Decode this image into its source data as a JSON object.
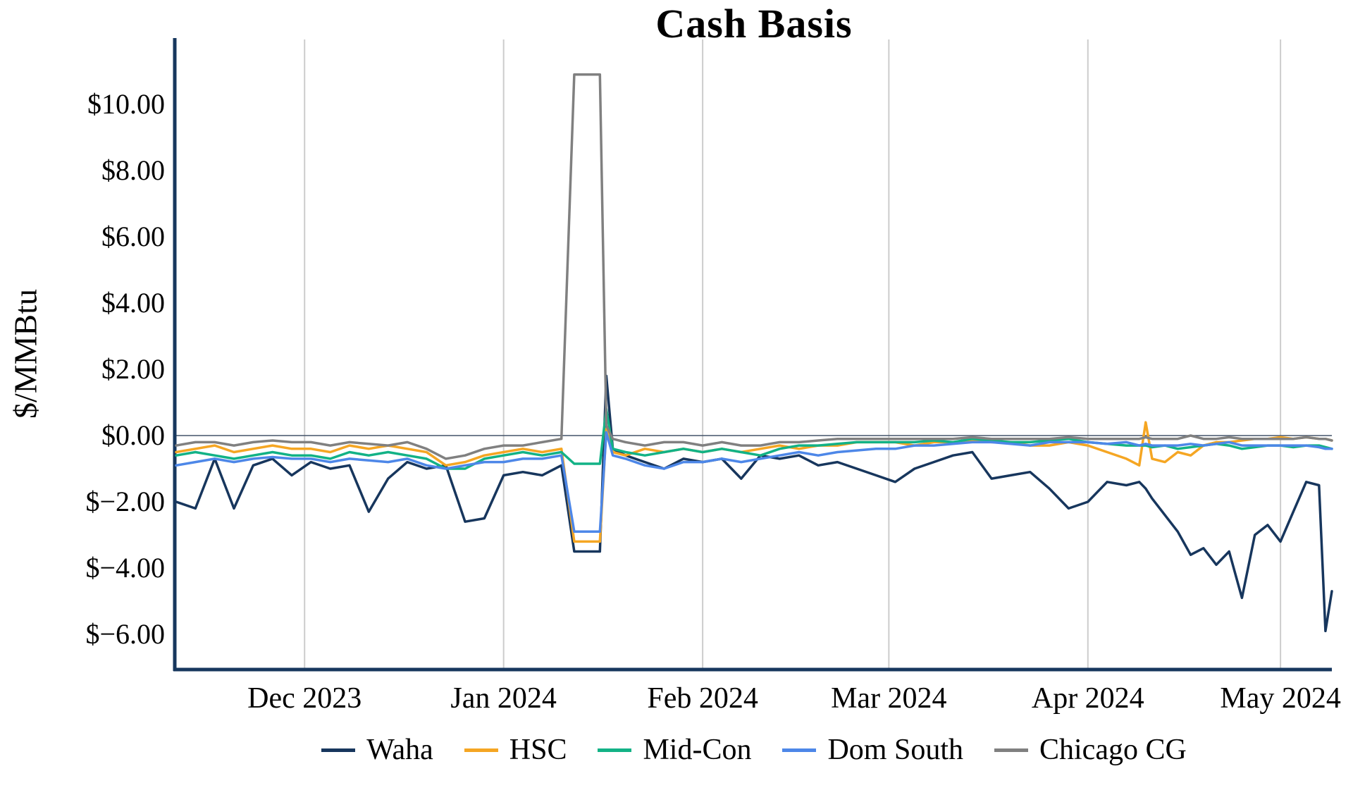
{
  "chart_data": {
    "type": "line",
    "title": "Cash Basis",
    "ylabel": "$/MMBtu",
    "x_unit": "date",
    "x_start": "2023-11-11",
    "x_end": "2024-05-09",
    "ylim": [
      -7.0,
      11.9
    ],
    "grid": "vertical-month-gridlines",
    "zero_line": true,
    "legend_position": "bottom",
    "y_ticks": [
      {
        "label": "$10.00",
        "value": 10
      },
      {
        "label": "$8.00",
        "value": 8
      },
      {
        "label": "$6.00",
        "value": 6
      },
      {
        "label": "$4.00",
        "value": 4
      },
      {
        "label": "$2.00",
        "value": 2
      },
      {
        "label": "$0.00",
        "value": 0
      },
      {
        "label": "$−2.00",
        "value": -2
      },
      {
        "label": "$−4.00",
        "value": -4
      },
      {
        "label": "$−6.00",
        "value": -6
      }
    ],
    "x_ticks": [
      {
        "label": "Dec 2023",
        "date": "2023-12-01"
      },
      {
        "label": "Jan 2024",
        "date": "2024-01-01"
      },
      {
        "label": "Feb 2024",
        "date": "2024-02-01"
      },
      {
        "label": "Mar 2024",
        "date": "2024-03-01"
      },
      {
        "label": "Apr 2024",
        "date": "2024-04-01"
      },
      {
        "label": "May 2024",
        "date": "2024-05-01"
      }
    ],
    "dates": [
      "2023-11-11",
      "2023-11-14",
      "2023-11-17",
      "2023-11-20",
      "2023-11-23",
      "2023-11-26",
      "2023-11-29",
      "2023-12-02",
      "2023-12-05",
      "2023-12-08",
      "2023-12-11",
      "2023-12-14",
      "2023-12-17",
      "2023-12-20",
      "2023-12-23",
      "2023-12-26",
      "2023-12-29",
      "2024-01-01",
      "2024-01-04",
      "2024-01-07",
      "2024-01-10",
      "2024-01-12",
      "2024-01-13",
      "2024-01-14",
      "2024-01-15",
      "2024-01-16",
      "2024-01-17",
      "2024-01-18",
      "2024-01-20",
      "2024-01-23",
      "2024-01-26",
      "2024-01-29",
      "2024-02-01",
      "2024-02-04",
      "2024-02-07",
      "2024-02-10",
      "2024-02-13",
      "2024-02-16",
      "2024-02-19",
      "2024-02-22",
      "2024-02-25",
      "2024-02-28",
      "2024-03-02",
      "2024-03-05",
      "2024-03-08",
      "2024-03-11",
      "2024-03-14",
      "2024-03-17",
      "2024-03-20",
      "2024-03-23",
      "2024-03-26",
      "2024-03-29",
      "2024-04-01",
      "2024-04-04",
      "2024-04-07",
      "2024-04-09",
      "2024-04-10",
      "2024-04-11",
      "2024-04-13",
      "2024-04-15",
      "2024-04-17",
      "2024-04-19",
      "2024-04-21",
      "2024-04-23",
      "2024-04-25",
      "2024-04-27",
      "2024-04-29",
      "2024-05-01",
      "2024-05-03",
      "2024-05-05",
      "2024-05-07",
      "2024-05-08",
      "2024-05-09"
    ],
    "series": [
      {
        "name": "Waha",
        "color": "#17365d",
        "values": [
          -2.0,
          -2.2,
          -0.7,
          -2.2,
          -0.9,
          -0.7,
          -1.2,
          -0.8,
          -1.0,
          -0.9,
          -2.3,
          -1.3,
          -0.8,
          -1.0,
          -0.9,
          -2.6,
          -2.5,
          -1.2,
          -1.1,
          -1.2,
          -0.9,
          -3.5,
          -3.5,
          -3.5,
          -3.5,
          -3.5,
          1.8,
          -0.4,
          -0.6,
          -0.8,
          -1.0,
          -0.7,
          -0.8,
          -0.7,
          -1.3,
          -0.6,
          -0.7,
          -0.6,
          -0.9,
          -0.8,
          -1.0,
          -1.2,
          -1.4,
          -1.0,
          -0.8,
          -0.6,
          -0.5,
          -1.3,
          -1.2,
          -1.1,
          -1.6,
          -2.2,
          -2.0,
          -1.4,
          -1.5,
          -1.4,
          -1.6,
          -1.9,
          -2.4,
          -2.9,
          -3.6,
          -3.4,
          -3.9,
          -3.5,
          -4.9,
          -3.0,
          -2.7,
          -3.2,
          -2.3,
          -1.4,
          -1.5,
          -5.9,
          -4.7
        ]
      },
      {
        "name": "HSC",
        "color": "#f5a623",
        "values": [
          -0.5,
          -0.4,
          -0.3,
          -0.5,
          -0.4,
          -0.3,
          -0.4,
          -0.4,
          -0.5,
          -0.3,
          -0.4,
          -0.3,
          -0.4,
          -0.5,
          -0.9,
          -0.8,
          -0.6,
          -0.5,
          -0.4,
          -0.5,
          -0.4,
          -3.2,
          -3.2,
          -3.2,
          -3.2,
          -3.2,
          0.2,
          -0.5,
          -0.6,
          -0.4,
          -0.5,
          -0.4,
          -0.5,
          -0.4,
          -0.5,
          -0.4,
          -0.3,
          -0.4,
          -0.3,
          -0.3,
          -0.2,
          -0.2,
          -0.2,
          -0.3,
          -0.2,
          -0.2,
          -0.15,
          -0.2,
          -0.2,
          -0.3,
          -0.3,
          -0.2,
          -0.3,
          -0.5,
          -0.7,
          -0.9,
          0.4,
          -0.7,
          -0.8,
          -0.5,
          -0.6,
          -0.3,
          -0.2,
          -0.2,
          -0.15,
          -0.1,
          -0.1,
          -0.05,
          -0.1,
          -0.05,
          -0.1,
          -0.1,
          -0.15
        ]
      },
      {
        "name": "Mid-Con",
        "color": "#12b286",
        "values": [
          -0.6,
          -0.5,
          -0.6,
          -0.7,
          -0.6,
          -0.5,
          -0.6,
          -0.6,
          -0.7,
          -0.5,
          -0.6,
          -0.5,
          -0.6,
          -0.7,
          -1.0,
          -1.0,
          -0.7,
          -0.6,
          -0.5,
          -0.6,
          -0.5,
          -0.85,
          -0.85,
          -0.85,
          -0.85,
          -0.85,
          0.8,
          -0.4,
          -0.5,
          -0.6,
          -0.5,
          -0.4,
          -0.5,
          -0.4,
          -0.5,
          -0.6,
          -0.4,
          -0.3,
          -0.3,
          -0.25,
          -0.2,
          -0.2,
          -0.2,
          -0.2,
          -0.15,
          -0.2,
          -0.1,
          -0.15,
          -0.2,
          -0.2,
          -0.15,
          -0.1,
          -0.2,
          -0.25,
          -0.3,
          -0.3,
          -0.3,
          -0.35,
          -0.3,
          -0.4,
          -0.35,
          -0.3,
          -0.25,
          -0.3,
          -0.4,
          -0.35,
          -0.3,
          -0.3,
          -0.35,
          -0.3,
          -0.3,
          -0.35,
          -0.4
        ]
      },
      {
        "name": "Dom South",
        "color": "#4d87e8",
        "values": [
          -0.9,
          -0.8,
          -0.7,
          -0.8,
          -0.7,
          -0.65,
          -0.7,
          -0.7,
          -0.8,
          -0.7,
          -0.75,
          -0.8,
          -0.7,
          -0.9,
          -1.0,
          -0.9,
          -0.8,
          -0.8,
          -0.7,
          -0.7,
          -0.6,
          -2.9,
          -2.9,
          -2.9,
          -2.9,
          -2.9,
          0.1,
          -0.6,
          -0.7,
          -0.9,
          -1.0,
          -0.8,
          -0.8,
          -0.7,
          -0.8,
          -0.7,
          -0.6,
          -0.5,
          -0.6,
          -0.5,
          -0.45,
          -0.4,
          -0.4,
          -0.3,
          -0.3,
          -0.25,
          -0.2,
          -0.2,
          -0.25,
          -0.3,
          -0.2,
          -0.2,
          -0.2,
          -0.25,
          -0.2,
          -0.3,
          -0.25,
          -0.3,
          -0.3,
          -0.3,
          -0.25,
          -0.3,
          -0.25,
          -0.2,
          -0.3,
          -0.3,
          -0.3,
          -0.3,
          -0.3,
          -0.3,
          -0.35,
          -0.4,
          -0.4
        ]
      },
      {
        "name": "Chicago CG",
        "color": "#808080",
        "values": [
          -0.3,
          -0.2,
          -0.2,
          -0.3,
          -0.2,
          -0.15,
          -0.2,
          -0.2,
          -0.3,
          -0.2,
          -0.25,
          -0.3,
          -0.2,
          -0.4,
          -0.7,
          -0.6,
          -0.4,
          -0.3,
          -0.3,
          -0.2,
          -0.1,
          10.9,
          10.9,
          10.9,
          10.9,
          10.9,
          0.3,
          -0.1,
          -0.2,
          -0.3,
          -0.2,
          -0.2,
          -0.3,
          -0.2,
          -0.3,
          -0.3,
          -0.2,
          -0.2,
          -0.15,
          -0.1,
          -0.1,
          -0.1,
          -0.1,
          -0.1,
          -0.1,
          -0.1,
          -0.05,
          -0.1,
          -0.1,
          -0.1,
          -0.1,
          -0.05,
          -0.1,
          -0.1,
          -0.1,
          -0.1,
          -0.05,
          -0.1,
          -0.1,
          -0.1,
          0.0,
          -0.1,
          -0.1,
          -0.05,
          -0.1,
          -0.1,
          -0.1,
          -0.1,
          -0.1,
          -0.05,
          -0.1,
          -0.1,
          -0.15
        ]
      }
    ]
  },
  "colors": {
    "axis": "#17375e",
    "grid": "#cccccc",
    "zero_line": "#44546a",
    "background": "#ffffff",
    "text": "#000000"
  }
}
